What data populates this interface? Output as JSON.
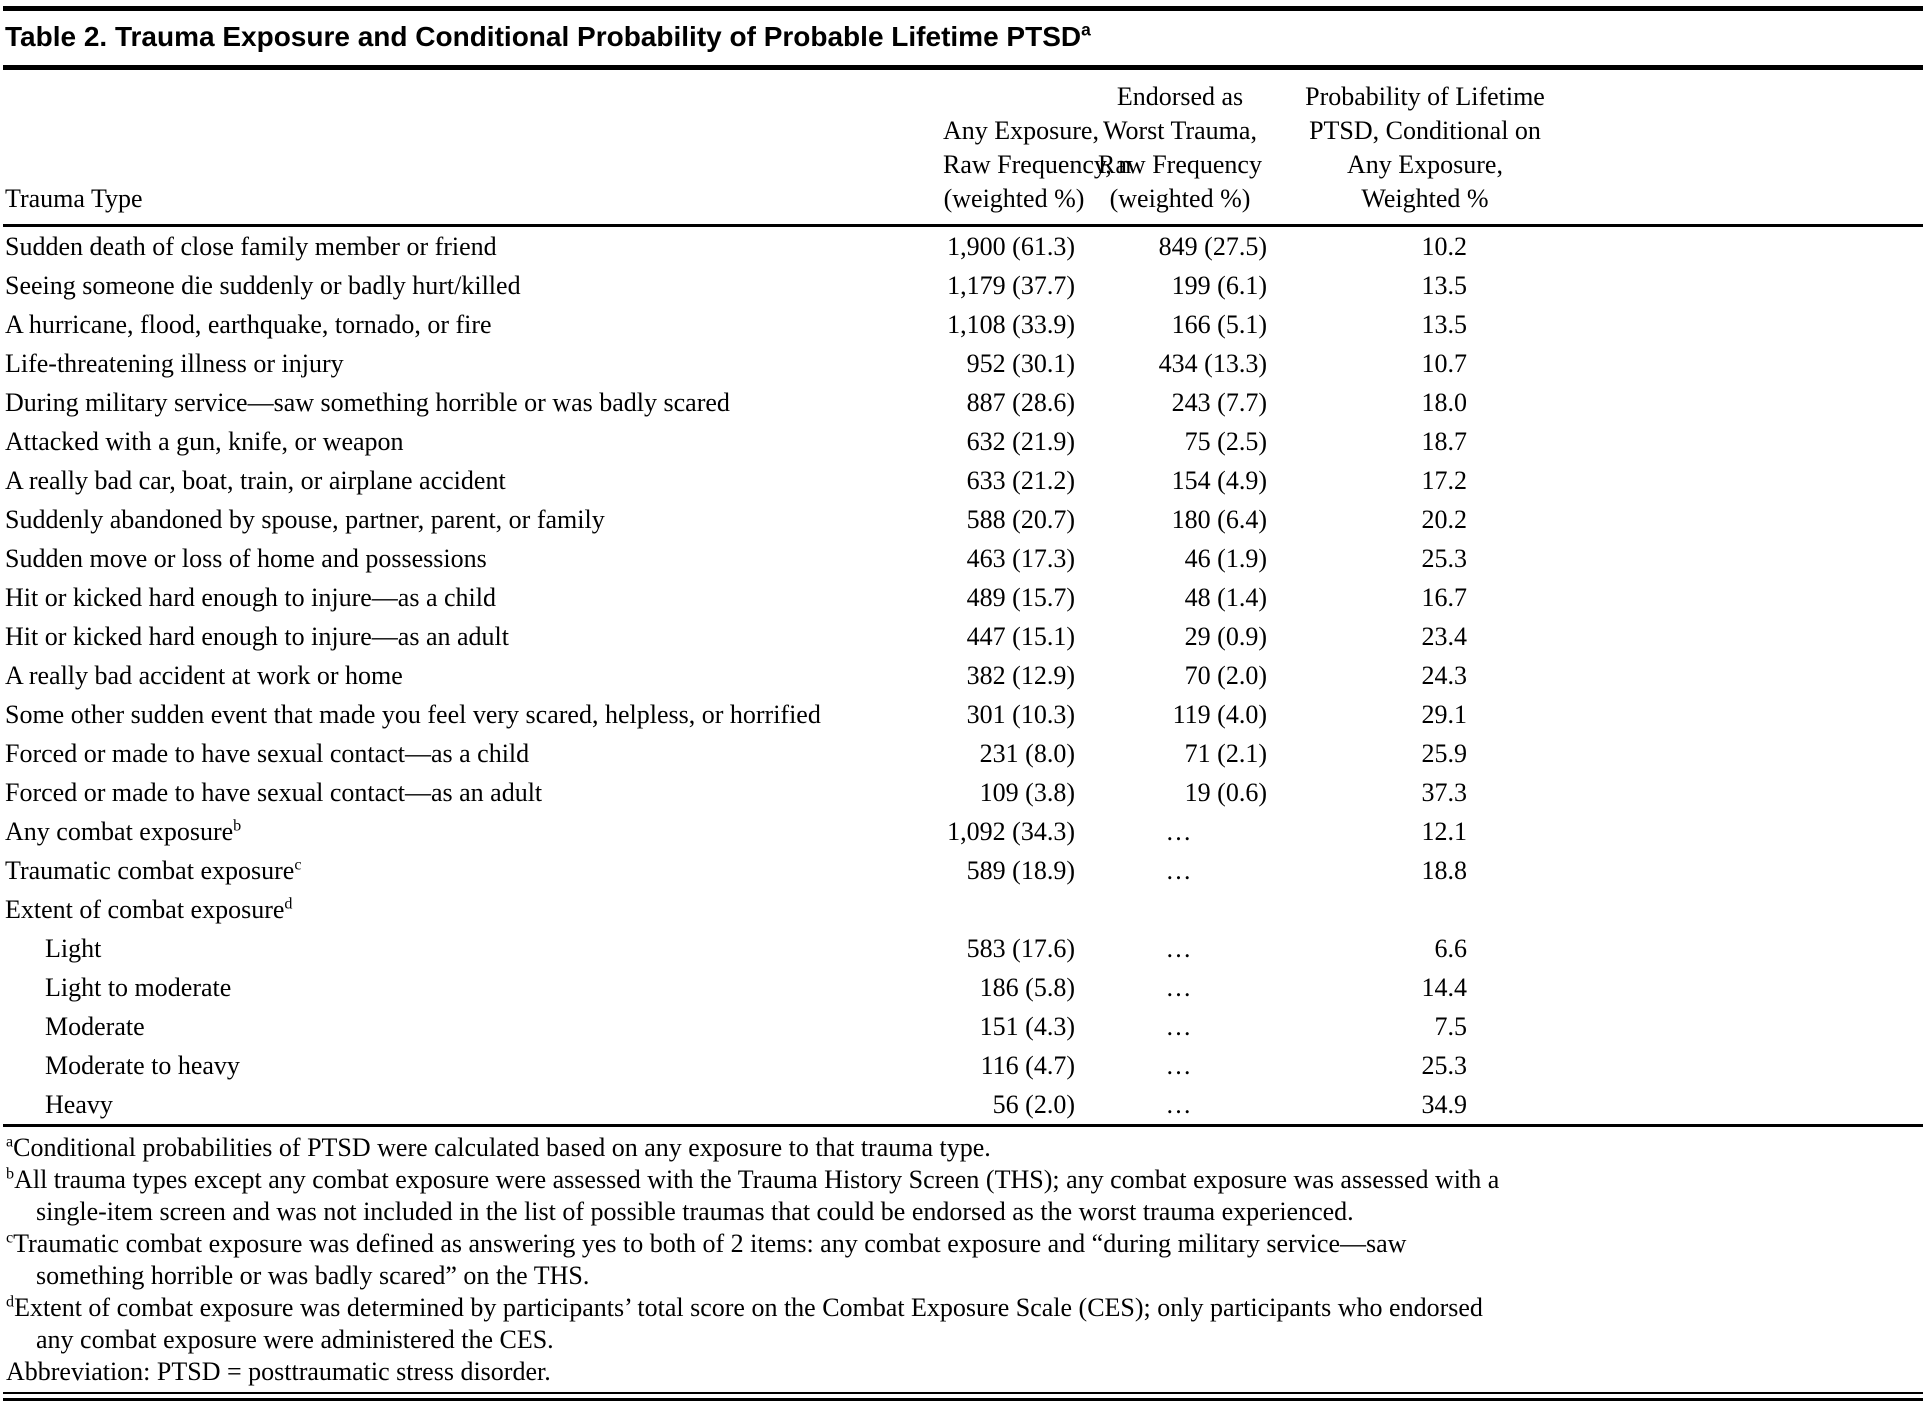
{
  "title": {
    "text": "Table 2. Trauma Exposure and Conditional Probability of Probable Lifetime PTSD",
    "sup": "a"
  },
  "table": {
    "columns": [
      {
        "id": "trauma-type",
        "header_lines": [
          "Trauma Type"
        ]
      },
      {
        "id": "any-exposure",
        "header_lines": [
          "Any Exposure,",
          "Raw Frequency, n",
          "(weighted %)"
        ]
      },
      {
        "id": "worst-trauma",
        "header_lines": [
          "Endorsed as",
          "Worst Trauma,",
          "Raw Frequency",
          "(weighted %)"
        ]
      },
      {
        "id": "probability",
        "header_lines": [
          "Probability of Lifetime",
          "PTSD, Conditional on",
          "Any Exposure,",
          "Weighted %"
        ]
      }
    ],
    "rows": [
      {
        "label": "Sudden death of close family member or friend",
        "any_exposure": "1,900 (61.3)",
        "worst_trauma": "849 (27.5)",
        "probability": "10.2"
      },
      {
        "label": "Seeing someone die suddenly or badly hurt/killed",
        "any_exposure": "1,179 (37.7)",
        "worst_trauma": "199 (6.1)",
        "probability": "13.5"
      },
      {
        "label": "A hurricane, flood, earthquake, tornado, or fire",
        "any_exposure": "1,108 (33.9)",
        "worst_trauma": "166 (5.1)",
        "probability": "13.5"
      },
      {
        "label": "Life-threatening illness or injury",
        "any_exposure": "952 (30.1)",
        "worst_trauma": "434 (13.3)",
        "probability": "10.7"
      },
      {
        "label": "During military service—saw something horrible or was badly scared",
        "any_exposure": "887 (28.6)",
        "worst_trauma": "243 (7.7)",
        "probability": "18.0"
      },
      {
        "label": "Attacked with a gun, knife, or weapon",
        "any_exposure": "632 (21.9)",
        "worst_trauma": "75 (2.5)",
        "probability": "18.7"
      },
      {
        "label": "A really bad car, boat, train, or airplane accident",
        "any_exposure": "633 (21.2)",
        "worst_trauma": "154 (4.9)",
        "probability": "17.2"
      },
      {
        "label": "Suddenly abandoned by spouse, partner, parent, or family",
        "any_exposure": "588 (20.7)",
        "worst_trauma": "180 (6.4)",
        "probability": "20.2"
      },
      {
        "label": "Sudden move or loss of home and possessions",
        "any_exposure": "463 (17.3)",
        "worst_trauma": "46 (1.9)",
        "probability": "25.3"
      },
      {
        "label": "Hit or kicked hard enough to injure—as a child",
        "any_exposure": "489 (15.7)",
        "worst_trauma": "48 (1.4)",
        "probability": "16.7"
      },
      {
        "label": "Hit or kicked hard enough to injure—as an adult",
        "any_exposure": "447 (15.1)",
        "worst_trauma": "29 (0.9)",
        "probability": "23.4"
      },
      {
        "label": "A really bad accident at work or home",
        "any_exposure": "382 (12.9)",
        "worst_trauma": "70 (2.0)",
        "probability": "24.3"
      },
      {
        "label": "Some other sudden event that made you feel very scared, helpless, or horrified",
        "any_exposure": "301 (10.3)",
        "worst_trauma": "119 (4.0)",
        "probability": "29.1"
      },
      {
        "label": "Forced or made to have sexual contact—as a child",
        "any_exposure": "231 (8.0)",
        "worst_trauma": "71 (2.1)",
        "probability": "25.9"
      },
      {
        "label": "Forced or made to have sexual contact—as an adult",
        "any_exposure": "109 (3.8)",
        "worst_trauma": "19 (0.6)",
        "probability": "37.3"
      },
      {
        "label": "Any combat exposure",
        "sup": "b",
        "any_exposure": "1,092 (34.3)",
        "worst_trauma": "…",
        "probability": "12.1"
      },
      {
        "label": "Traumatic combat exposure",
        "sup": "c",
        "any_exposure": "589 (18.9)",
        "worst_trauma": "…",
        "probability": "18.8"
      },
      {
        "label": "Extent of combat exposure",
        "sup": "d",
        "any_exposure": "",
        "worst_trauma": "",
        "probability": ""
      },
      {
        "label": "Light",
        "indent": true,
        "any_exposure": "583 (17.6)",
        "worst_trauma": "…",
        "probability": "6.6"
      },
      {
        "label": "Light to moderate",
        "indent": true,
        "any_exposure": "186 (5.8)",
        "worst_trauma": "…",
        "probability": "14.4"
      },
      {
        "label": "Moderate",
        "indent": true,
        "any_exposure": "151 (4.3)",
        "worst_trauma": "…",
        "probability": "7.5"
      },
      {
        "label": "Moderate to heavy",
        "indent": true,
        "any_exposure": "116 (4.7)",
        "worst_trauma": "…",
        "probability": "25.3"
      },
      {
        "label": "Heavy",
        "indent": true,
        "any_exposure": "56 (2.0)",
        "worst_trauma": "…",
        "probability": "34.9"
      }
    ]
  },
  "footnotes": [
    {
      "sup": "a",
      "lines": [
        "Conditional probabilities of PTSD were calculated based on any exposure to that trauma type."
      ]
    },
    {
      "sup": "b",
      "lines": [
        "All trauma types except any combat exposure were assessed with the Trauma History Screen (THS); any combat exposure was assessed with a",
        "single-item screen and was not included in the list of possible traumas that could be endorsed as the worst trauma experienced."
      ]
    },
    {
      "sup": "c",
      "lines": [
        "Traumatic combat exposure was defined as answering yes to both of 2 items: any combat exposure and “during military service—saw",
        "something horrible or was badly scared” on the THS."
      ]
    },
    {
      "sup": "d",
      "lines": [
        "Extent of combat exposure was determined by participants’ total score on the Combat Exposure Scale (CES); only participants who endorsed",
        "any combat exposure were administered the CES."
      ]
    },
    {
      "sup": "",
      "lines": [
        "Abbreviation: PTSD = posttraumatic stress disorder."
      ]
    }
  ]
}
